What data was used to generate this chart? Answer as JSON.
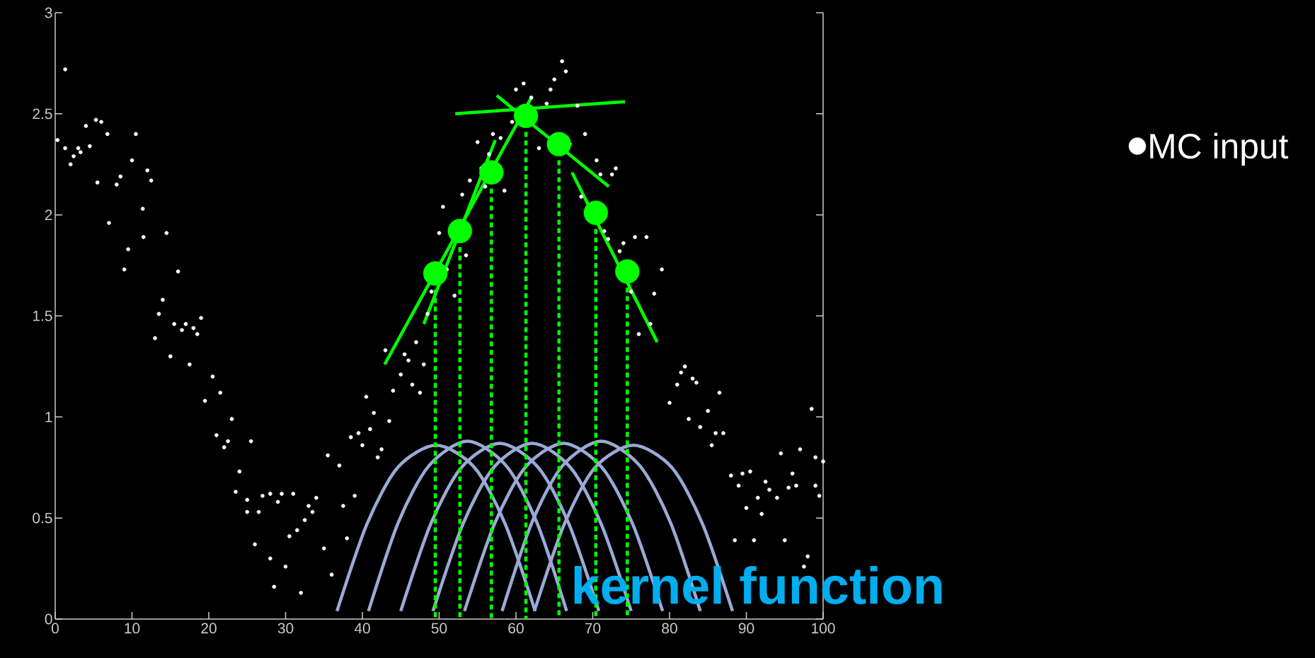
{
  "chart_data": {
    "type": "scatter",
    "xlim": [
      0,
      100
    ],
    "ylim": [
      0,
      3
    ],
    "xticks": [
      0,
      10,
      20,
      30,
      40,
      50,
      60,
      70,
      80,
      90,
      100
    ],
    "yticks": [
      0,
      0.5,
      1,
      1.5,
      2,
      2.5,
      3
    ],
    "legend": "top right",
    "annotations": [
      "kernel function"
    ],
    "series": [
      {
        "name": "MC input",
        "marker": "circle",
        "color": "#ffffff",
        "x": [
          0.3,
          1.3,
          1.3,
          2,
          2.4,
          3,
          3.3,
          4,
          4.5,
          5.3,
          5.5,
          6,
          6.8,
          7,
          8,
          8.5,
          9,
          9.5,
          10,
          10.5,
          11.4,
          11.5,
          12,
          12.5,
          13,
          13.5,
          14,
          14.5,
          15,
          15.5,
          16,
          16.5,
          17,
          17.5,
          18,
          18.5,
          19,
          19.5,
          20.5,
          21,
          21.5,
          22,
          22.5,
          23,
          23.5,
          24,
          25,
          25,
          25.5,
          26,
          26.5,
          27,
          28,
          28,
          28.5,
          29,
          29.5,
          30,
          30.5,
          31,
          31.5,
          32,
          32.5,
          33,
          33.5,
          34,
          35,
          35.5,
          36,
          37,
          37.5,
          38,
          38.5,
          39,
          39.5,
          40,
          40.5,
          41,
          41.5,
          42,
          42.5,
          43,
          43.5,
          44,
          45,
          45.5,
          46,
          46.5,
          47,
          47.5,
          48,
          48.5,
          49,
          50,
          50.5,
          51,
          52,
          53,
          53.5,
          54,
          55,
          55.5,
          56,
          56.5,
          57,
          58,
          58.5,
          59.5,
          60,
          61,
          62,
          63,
          64,
          64.5,
          65,
          66,
          66.5,
          67,
          68,
          68.5,
          69,
          70.5,
          71,
          71.5,
          72,
          72.5,
          73,
          73.5,
          74,
          75,
          75.5,
          76,
          77,
          77.5,
          78,
          79,
          80,
          81,
          81.5,
          82,
          82.5,
          83,
          83.5,
          84,
          85,
          85.5,
          86,
          86.5,
          87,
          88,
          88.5,
          89,
          89.5,
          90,
          90.5,
          91,
          91.5,
          92,
          92.5,
          93,
          94,
          94.5,
          95,
          95.5,
          96,
          96.5,
          97,
          97.5,
          98,
          98.5,
          99,
          99,
          99.5,
          100
        ],
        "values": [
          2.37,
          2.72,
          2.33,
          2.25,
          2.29,
          2.33,
          2.31,
          2.44,
          2.34,
          2.47,
          2.16,
          2.46,
          2.4,
          1.96,
          2.15,
          2.19,
          1.73,
          1.83,
          2.27,
          2.4,
          2.03,
          1.89,
          2.22,
          2.17,
          1.39,
          1.51,
          1.58,
          1.91,
          1.3,
          1.46,
          1.72,
          1.43,
          1.46,
          1.26,
          1.44,
          1.41,
          1.49,
          1.08,
          1.2,
          0.91,
          1.12,
          0.85,
          0.88,
          0.99,
          0.63,
          0.73,
          0.53,
          0.59,
          0.88,
          0.37,
          0.53,
          0.61,
          0.3,
          0.62,
          0.16,
          0.58,
          0.62,
          0.26,
          0.41,
          0.62,
          0.44,
          0.13,
          0.49,
          0.56,
          0.53,
          0.6,
          0.35,
          0.81,
          0.22,
          0.76,
          0.56,
          0.4,
          0.9,
          0.61,
          0.92,
          0.86,
          1.1,
          0.94,
          1.02,
          0.8,
          0.84,
          1.33,
          0.98,
          1.13,
          1.21,
          1.31,
          1.28,
          1.16,
          1.37,
          1.12,
          1.26,
          1.51,
          1.62,
          1.91,
          2.04,
          1.73,
          1.6,
          2.1,
          1.8,
          2.17,
          2.36,
          2.23,
          2.14,
          2.3,
          2.4,
          2.38,
          2.12,
          2.46,
          2.62,
          2.65,
          2.58,
          2.33,
          2.55,
          2.62,
          2.67,
          2.76,
          2.71,
          2.35,
          2.54,
          2.09,
          2.4,
          2.27,
          2.2,
          1.92,
          1.88,
          2.2,
          2.23,
          1.82,
          1.86,
          1.62,
          1.89,
          1.41,
          1.89,
          1.46,
          1.61,
          1.73,
          1.07,
          1.16,
          1.22,
          1.25,
          0.99,
          1.19,
          1.17,
          0.95,
          1.03,
          0.86,
          0.92,
          1.12,
          0.92,
          0.71,
          0.39,
          0.66,
          0.72,
          0.55,
          0.73,
          0.39,
          0.6,
          0.52,
          0.68,
          0.64,
          0.6,
          0.82,
          0.39,
          0.65,
          0.72,
          0.66,
          0.84,
          0.26,
          0.31,
          1.04,
          0.8,
          0.66,
          0.61,
          0.78
        ]
      },
      {
        "type": "line",
        "color": "#9aaad6",
        "x": [
          36.7,
          40.6,
          44.6,
          49.6,
          54.6,
          58.6,
          62.5
        ],
        "values": [
          0.04,
          0.47,
          0.75,
          0.86,
          0.75,
          0.47,
          0.04
        ]
      },
      {
        "type": "line",
        "color": "#9aaad6",
        "x": [
          40.8,
          44.7,
          48.7,
          53.7,
          58.7,
          62.7,
          66.6
        ],
        "values": [
          0.04,
          0.48,
          0.76,
          0.88,
          0.76,
          0.48,
          0.04
        ]
      },
      {
        "type": "line",
        "color": "#9aaad6",
        "x": [
          45.0,
          48.9,
          52.9,
          57.9,
          62.9,
          66.9,
          70.8
        ],
        "values": [
          0.04,
          0.47,
          0.75,
          0.87,
          0.75,
          0.47,
          0.04
        ]
      },
      {
        "type": "line",
        "color": "#9aaad6",
        "x": [
          49.2,
          53.1,
          57.1,
          62.1,
          67.1,
          71.1,
          75.0
        ],
        "values": [
          0.04,
          0.47,
          0.75,
          0.87,
          0.75,
          0.47,
          0.04
        ]
      },
      {
        "type": "line",
        "color": "#9aaad6",
        "x": [
          53.3,
          57.2,
          61.2,
          66.2,
          71.2,
          75.2,
          79.1
        ],
        "values": [
          0.04,
          0.47,
          0.75,
          0.87,
          0.75,
          0.47,
          0.04
        ]
      },
      {
        "type": "line",
        "color": "#9aaad6",
        "x": [
          58.2,
          62.1,
          66.1,
          71.1,
          76.1,
          80.1,
          84.0
        ],
        "values": [
          0.04,
          0.48,
          0.76,
          0.88,
          0.76,
          0.48,
          0.04
        ]
      },
      {
        "type": "line",
        "color": "#9aaad6",
        "x": [
          62.4,
          66.3,
          70.3,
          75.3,
          80.3,
          84.3,
          88.2
        ],
        "values": [
          0.04,
          0.47,
          0.75,
          0.86,
          0.75,
          0.47,
          0.04
        ]
      },
      {
        "type": "line",
        "line_style": "dotted",
        "color": "#00ff00",
        "x": [
          49.5,
          49.5
        ],
        "values": [
          1.63,
          0
        ]
      },
      {
        "type": "line",
        "line_style": "dotted",
        "color": "#00ff00",
        "x": [
          52.7,
          52.7
        ],
        "values": [
          1.84,
          0
        ]
      },
      {
        "type": "line",
        "line_style": "dotted",
        "color": "#00ff00",
        "x": [
          56.8,
          56.8
        ],
        "values": [
          2.13,
          0
        ]
      },
      {
        "type": "line",
        "line_style": "dotted",
        "color": "#00ff00",
        "x": [
          61.3,
          61.3
        ],
        "values": [
          2.41,
          0
        ]
      },
      {
        "type": "line",
        "line_style": "dotted",
        "color": "#00ff00",
        "x": [
          65.6,
          65.6
        ],
        "values": [
          2.27,
          0
        ]
      },
      {
        "type": "line",
        "line_style": "dotted",
        "color": "#00ff00",
        "x": [
          70.4,
          70.4
        ],
        "values": [
          1.93,
          0
        ]
      },
      {
        "type": "line",
        "line_style": "dotted",
        "color": "#00ff00",
        "x": [
          74.5,
          74.5
        ],
        "values": [
          1.64,
          0
        ]
      },
      {
        "type": "line",
        "color": "#00ff00",
        "x": [
          42.9,
          62.0
        ],
        "values": [
          1.26,
          2.58
        ]
      },
      {
        "type": "line",
        "color": "#00ff00",
        "x": [
          48.0,
          57.3
        ],
        "values": [
          1.46,
          2.37
        ]
      },
      {
        "type": "line",
        "color": "#00ff00",
        "x": [
          52.1,
          74.2
        ],
        "values": [
          2.5,
          2.56
        ]
      },
      {
        "type": "line",
        "color": "#00ff00",
        "x": [
          57.5,
          72.1
        ],
        "values": [
          2.59,
          2.14
        ]
      },
      {
        "type": "line",
        "color": "#00ff00",
        "x": [
          67.3,
          78.4
        ],
        "values": [
          2.21,
          1.37
        ]
      },
      {
        "marker": "circle",
        "color": "#00ff00",
        "x": [
          49.5,
          52.7,
          56.8,
          61.3,
          65.6,
          70.4,
          74.5
        ],
        "values": [
          1.71,
          1.92,
          2.21,
          2.49,
          2.35,
          2.01,
          1.72
        ]
      }
    ]
  }
}
